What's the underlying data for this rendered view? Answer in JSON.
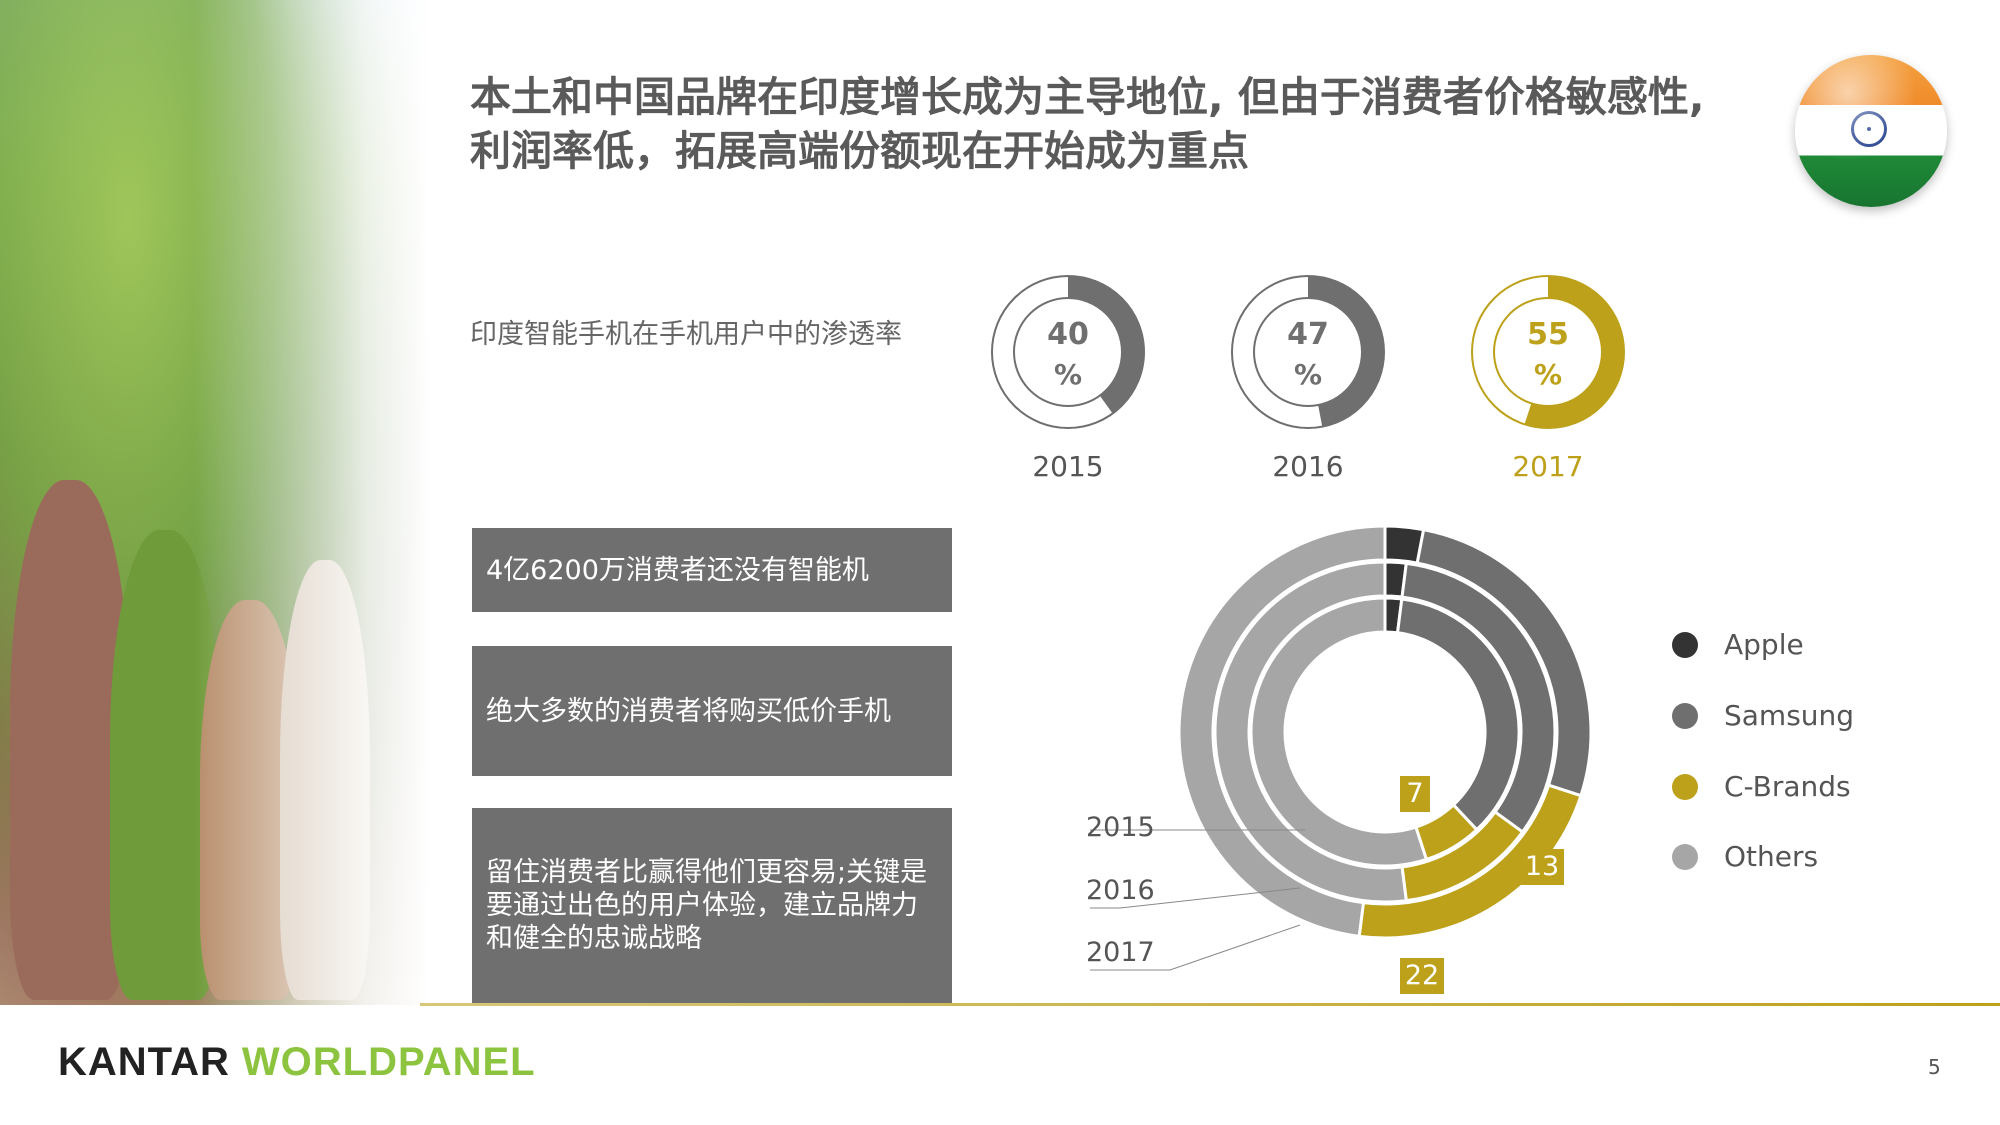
{
  "header": {
    "title_line1": "本土和中国品牌在印度增长成为主导地位, 但由于消费者价格敏感性,",
    "title_line2": "利润率低，拓展高端份额现在开始成为重点"
  },
  "penetration": {
    "label": "印度智能手机在手机用户中的渗透率",
    "items": [
      {
        "year": "2015",
        "value": 40,
        "value_label": "40",
        "unit": "%",
        "color": "#6f6f6f"
      },
      {
        "year": "2016",
        "value": 47,
        "value_label": "47",
        "unit": "%",
        "color": "#6f6f6f"
      },
      {
        "year": "2017",
        "value": 55,
        "value_label": "55",
        "unit": "%",
        "color": "#bda11a"
      }
    ]
  },
  "insights": [
    "4亿6200万消费者还没有智能机",
    "绝大多数的消费者将购买低价手机",
    "留住消费者比赢得他们更容易;关键是要通过出色的用户体验，建立品牌力和健全的忠诚战略"
  ],
  "chart_data": {
    "type": "pie",
    "subtype": "multi-ring donut",
    "series": [
      {
        "name": "2015",
        "values": {
          "Apple": 2,
          "Samsung": 36,
          "C-Brands": 7,
          "Others": 55
        }
      },
      {
        "name": "2016",
        "values": {
          "Apple": 2,
          "Samsung": 33,
          "C-Brands": 13,
          "Others": 52
        }
      },
      {
        "name": "2017",
        "values": {
          "Apple": 3,
          "Samsung": 27,
          "C-Brands": 22,
          "Others": 48
        }
      }
    ],
    "categories": [
      "Apple",
      "Samsung",
      "C-Brands",
      "Others"
    ],
    "data_labels": {
      "2015": "7",
      "2016": "13",
      "2017": "22"
    },
    "legend_position": "right"
  },
  "legend": [
    {
      "label": "Apple",
      "color": "#333333"
    },
    {
      "label": "Samsung",
      "color": "#6f6f6f"
    },
    {
      "label": "C-Brands",
      "color": "#bda11a"
    },
    {
      "label": "Others",
      "color": "#a6a6a6"
    }
  ],
  "ring_labels": [
    "2015",
    "2016",
    "2017"
  ],
  "footer": {
    "logo_kantar": "KANTAR",
    "logo_worldpanel": "WORLDPANEL",
    "page_number": "5"
  }
}
